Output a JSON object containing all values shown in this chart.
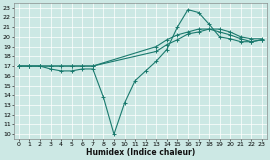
{
  "xlabel": "Humidex (Indice chaleur)",
  "bg_color": "#cce8e4",
  "grid_color": "#b8dbd8",
  "line_color": "#1a7a6e",
  "xlim": [
    -0.5,
    23.5
  ],
  "ylim": [
    9.5,
    23.5
  ],
  "yticks": [
    10,
    11,
    12,
    13,
    14,
    15,
    16,
    17,
    18,
    19,
    20,
    21,
    22,
    23
  ],
  "xticks": [
    0,
    1,
    2,
    3,
    4,
    5,
    6,
    7,
    8,
    9,
    10,
    11,
    12,
    13,
    14,
    15,
    16,
    17,
    18,
    19,
    20,
    21,
    22,
    23
  ],
  "line1_x": [
    0,
    1,
    2,
    3,
    4,
    5,
    6,
    7,
    8,
    9,
    10,
    11,
    12,
    13,
    14,
    15,
    16,
    17,
    18,
    19,
    20,
    21,
    22,
    23
  ],
  "line1_y": [
    17,
    17,
    17,
    16.7,
    16.5,
    16.5,
    16.7,
    16.7,
    13.8,
    10.0,
    13.2,
    15.5,
    16.5,
    17.5,
    18.7,
    21.0,
    22.8,
    22.5,
    21.3,
    20.0,
    19.8,
    19.5,
    19.5,
    19.7
  ],
  "line2_x": [
    0,
    1,
    2,
    3,
    4,
    5,
    6,
    7,
    13,
    14,
    15,
    16,
    17,
    18,
    19,
    20,
    21,
    22,
    23
  ],
  "line2_y": [
    17,
    17,
    17,
    17,
    17,
    17,
    17,
    17,
    18.5,
    19.2,
    19.7,
    20.3,
    20.5,
    20.8,
    20.5,
    20.2,
    19.8,
    19.5,
    19.7
  ],
  "line3_x": [
    0,
    1,
    2,
    3,
    4,
    5,
    6,
    7,
    13,
    14,
    15,
    16,
    17,
    18,
    19,
    20,
    21,
    22,
    23
  ],
  "line3_y": [
    17,
    17,
    17,
    17,
    17,
    17,
    17,
    17,
    19.0,
    19.7,
    20.2,
    20.5,
    20.8,
    20.8,
    20.8,
    20.5,
    20.0,
    19.8,
    19.8
  ]
}
